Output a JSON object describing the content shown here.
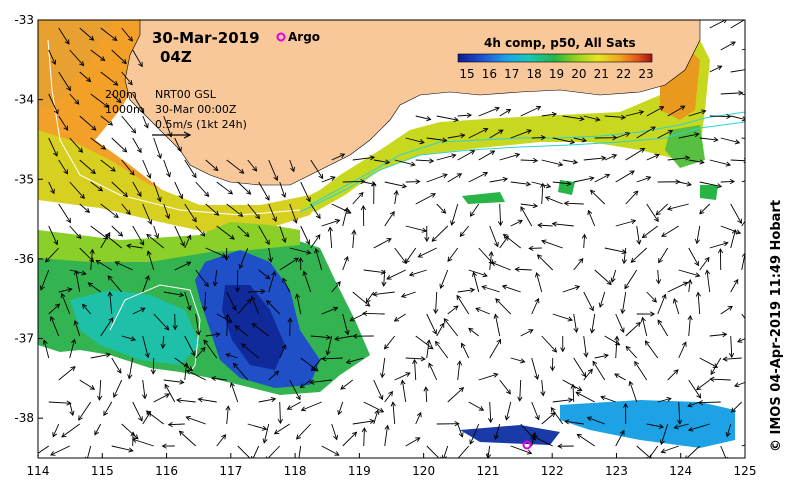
{
  "header": {
    "date": "30-Mar-2019",
    "time": "04Z",
    "argo_label": "Argo",
    "colorbar_title": "4h comp, p50, All Sats"
  },
  "info": {
    "contour_200": "200m",
    "contour_1000": "1000m",
    "product": "NRT00 GSL",
    "product_time": "30-Mar 00:00Z",
    "scale": "0.5m/s (1kt 24h)"
  },
  "credit": "© IMOS 04-Apr-2019 11:49 Hobart",
  "colorbar": {
    "ticks": [
      "15",
      "16",
      "17",
      "18",
      "19",
      "20",
      "21",
      "22",
      "23"
    ],
    "colors": [
      "#0b1a8c",
      "#1f4fd0",
      "#1ea2e6",
      "#19c8b4",
      "#28b446",
      "#8cd21e",
      "#e6e61e",
      "#f0a01e",
      "#e0501a",
      "#a0141a"
    ]
  },
  "chart_data": {
    "type": "map",
    "x_ticks": [
      "114",
      "115",
      "116",
      "117",
      "118",
      "119",
      "120",
      "121",
      "122",
      "123",
      "124",
      "125"
    ],
    "y_ticks": [
      "-33",
      "-34",
      "-35",
      "-36",
      "-37",
      "-38"
    ],
    "lon_range": [
      114,
      125
    ],
    "lat_range": [
      -38.5,
      -33
    ],
    "argo_float": {
      "lon": 121.6,
      "lat": -38.35
    },
    "colors": {
      "land": "#f9c89a",
      "argo": "#e000e0",
      "shelf_contour": "#2ad4d4",
      "deep_contour": "#ffffff",
      "arrow": "#000000"
    }
  }
}
